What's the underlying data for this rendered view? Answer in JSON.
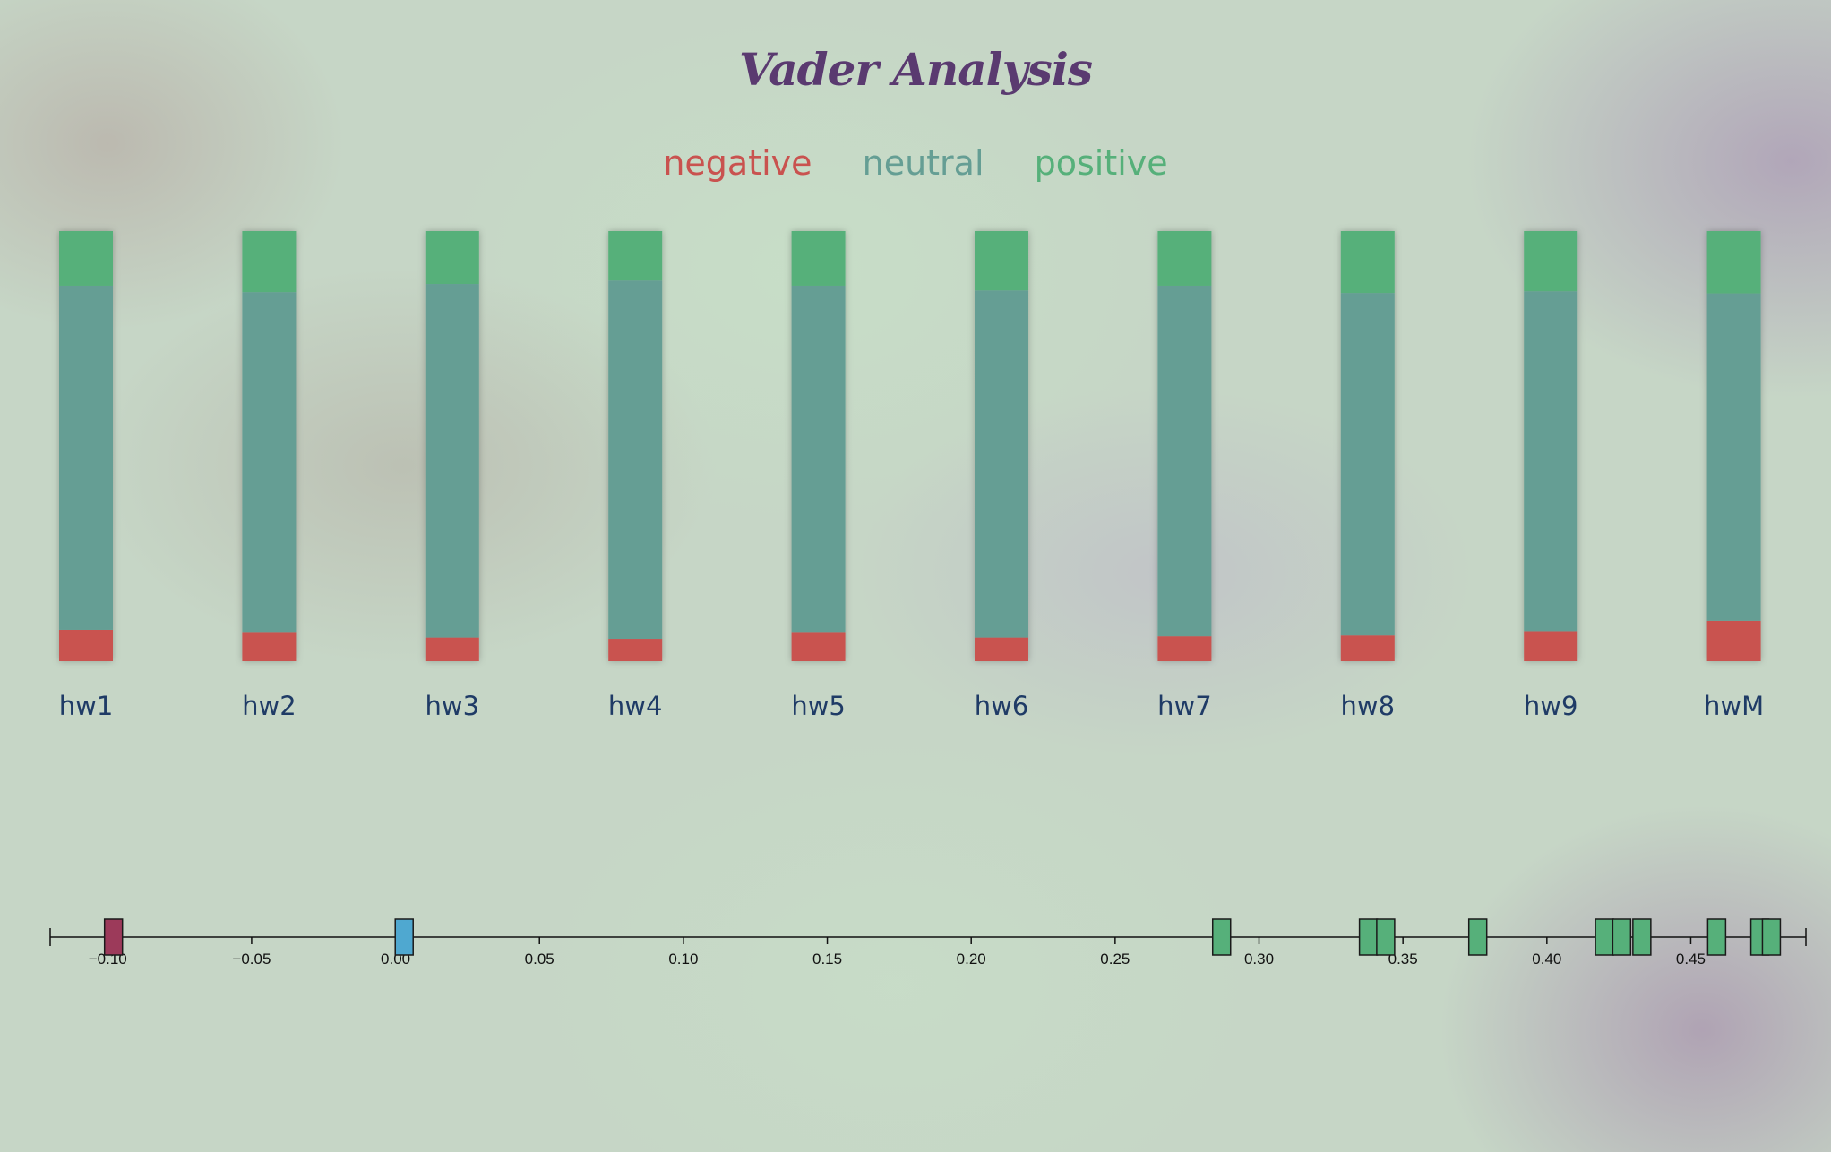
{
  "title": "Vader Analysis",
  "legend": {
    "negative": "negative",
    "neutral": "neutral",
    "positive": "positive"
  },
  "colors": {
    "negative": "#c9524f",
    "neutral": "#659e94",
    "positive": "#56b07a",
    "title": "#5a3a70",
    "label": "#1f3b66",
    "strip_negative": "#9c3a5a",
    "strip_zero": "#4fa8d0",
    "strip_positive": "#56b07a"
  },
  "chart_data": [
    {
      "type": "bar",
      "stacked": true,
      "normalized": true,
      "categories": [
        "hw1",
        "hw2",
        "hw3",
        "hw4",
        "hw5",
        "hw6",
        "hw7",
        "hw8",
        "hw9",
        "hwM"
      ],
      "series": [
        {
          "name": "negative",
          "values": [
            0.073,
            0.066,
            0.055,
            0.052,
            0.066,
            0.055,
            0.058,
            0.06,
            0.07,
            0.094
          ]
        },
        {
          "name": "neutral",
          "values": [
            0.8,
            0.792,
            0.822,
            0.833,
            0.807,
            0.807,
            0.815,
            0.796,
            0.79,
            0.761
          ]
        },
        {
          "name": "positive",
          "values": [
            0.127,
            0.142,
            0.123,
            0.115,
            0.127,
            0.138,
            0.127,
            0.144,
            0.14,
            0.145
          ]
        }
      ],
      "ylim": [
        0,
        1
      ]
    },
    {
      "type": "scatter",
      "xlim": [
        -0.12,
        0.49
      ],
      "ticks": [
        -0.1,
        -0.05,
        0.0,
        0.05,
        0.1,
        0.15,
        0.2,
        0.25,
        0.3,
        0.35,
        0.4,
        0.45
      ],
      "tick_labels": [
        "−0.10",
        "−0.05",
        "0.00",
        "0.05",
        "0.10",
        "0.15",
        "0.20",
        "0.25",
        "0.30",
        "0.35",
        "0.40",
        "0.45"
      ],
      "x": [
        -0.098,
        0.003,
        0.287,
        0.338,
        0.344,
        0.376,
        0.42,
        0.426,
        0.433,
        0.459,
        0.474,
        0.478
      ]
    }
  ]
}
